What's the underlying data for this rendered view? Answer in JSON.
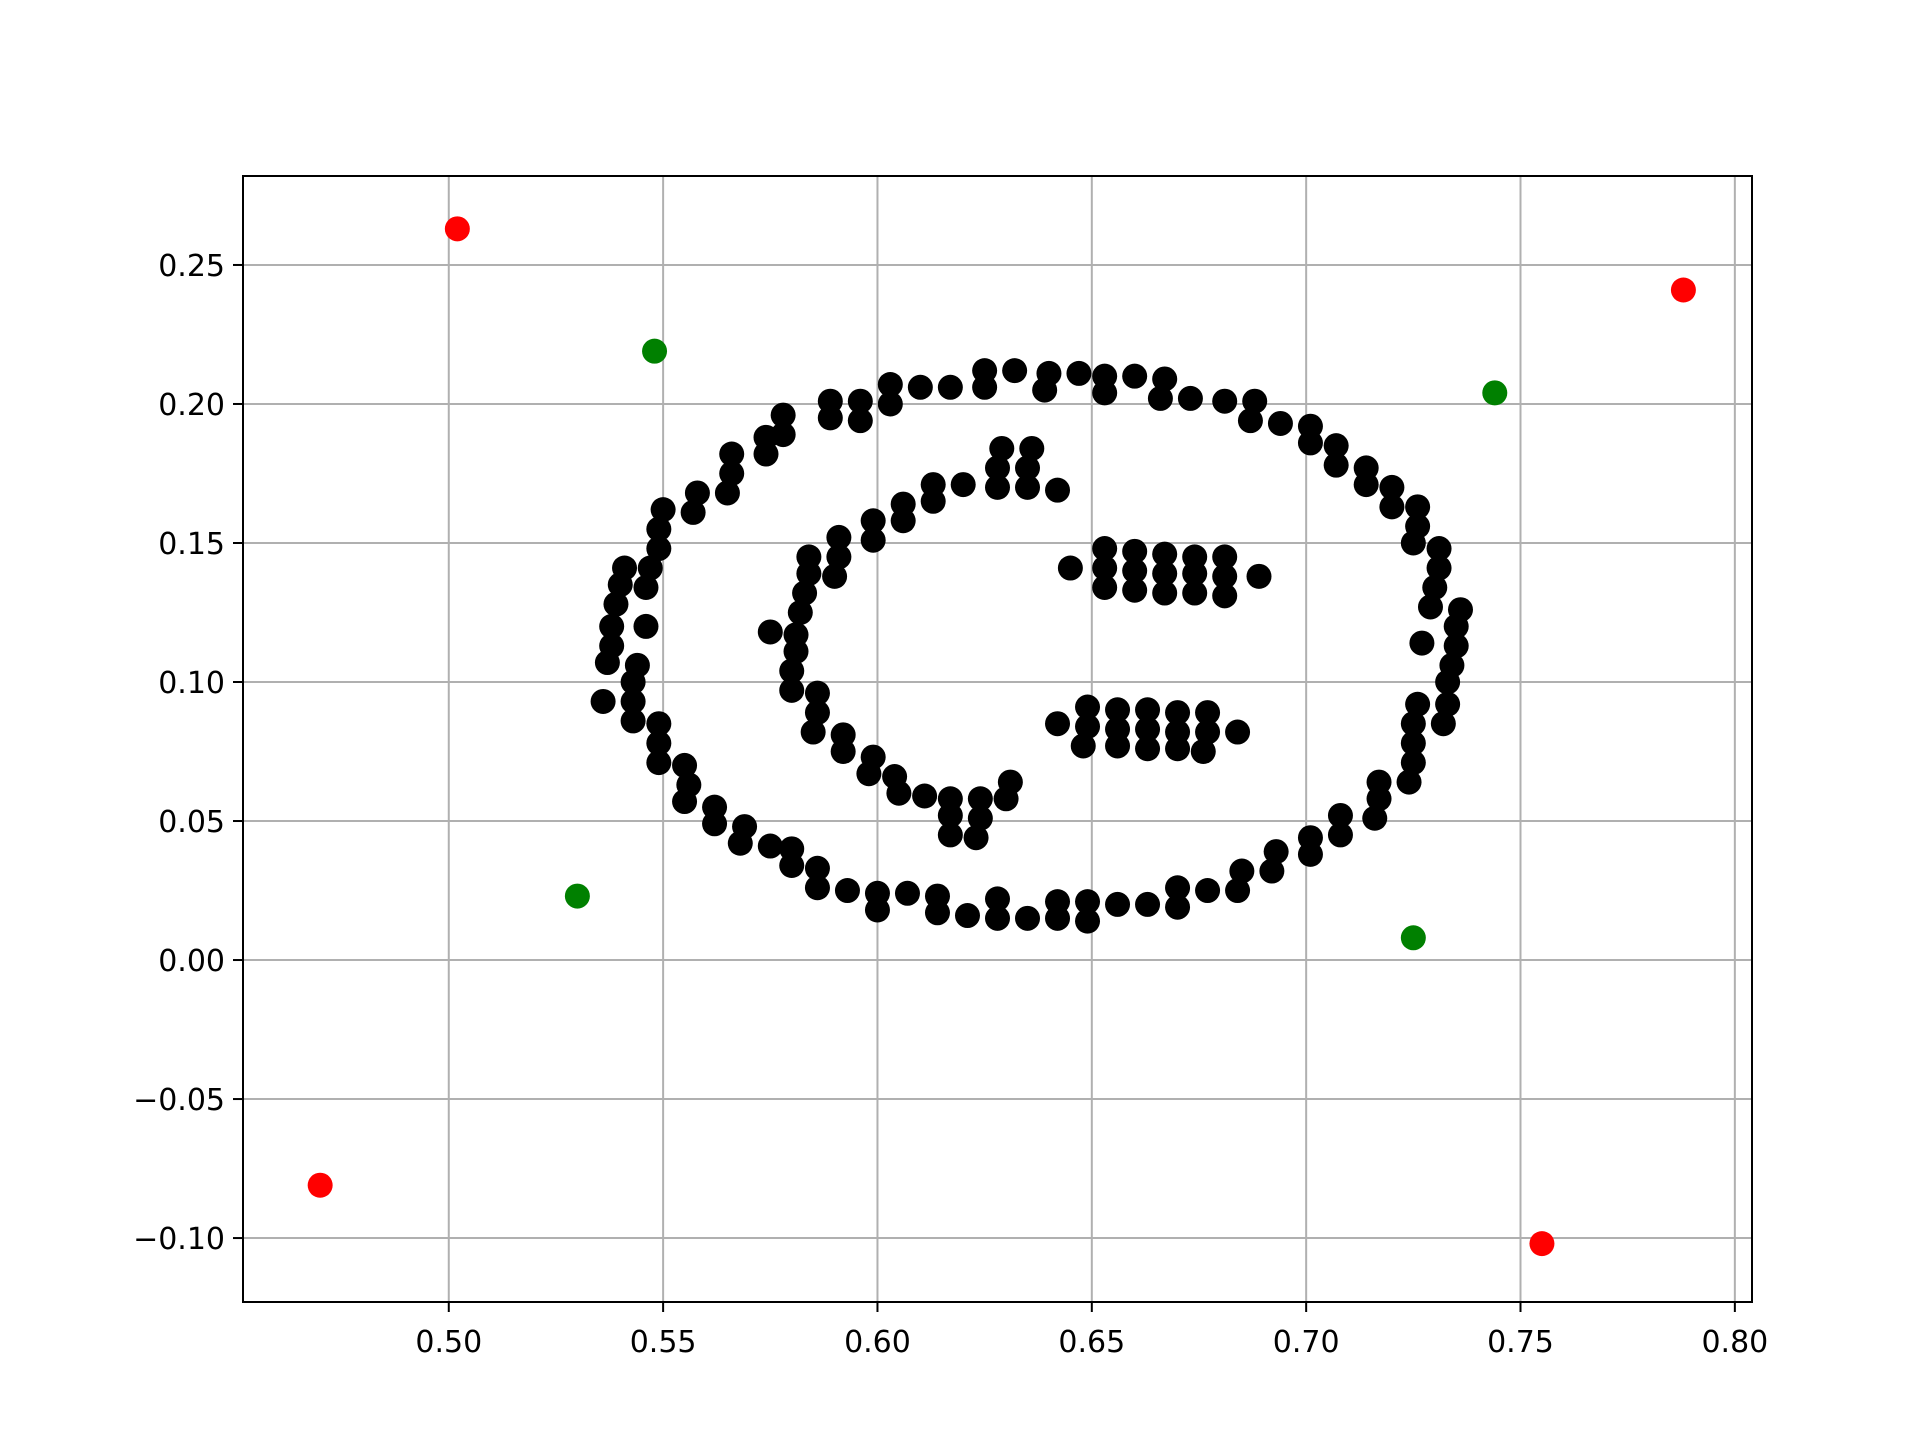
{
  "chart_data": {
    "type": "scatter",
    "title": "",
    "xlabel": "",
    "ylabel": "",
    "xlim": [
      0.452,
      0.804
    ],
    "ylim": [
      -0.123,
      0.282
    ],
    "grid": true,
    "xticks": [
      0.5,
      0.55,
      0.6,
      0.65,
      0.7,
      0.75,
      0.8
    ],
    "xtick_labels": [
      "0.50",
      "0.55",
      "0.60",
      "0.65",
      "0.70",
      "0.75",
      "0.80"
    ],
    "yticks": [
      -0.1,
      -0.05,
      0.0,
      0.05,
      0.1,
      0.15,
      0.2,
      0.25
    ],
    "ytick_labels": [
      "−0.10",
      "−0.05",
      "0.00",
      "0.05",
      "0.10",
      "0.15",
      "0.20",
      "0.25"
    ],
    "series": [
      {
        "color": "#000000",
        "points": [
          [
            0.625,
            0.212
          ],
          [
            0.632,
            0.212
          ],
          [
            0.64,
            0.211
          ],
          [
            0.647,
            0.211
          ],
          [
            0.653,
            0.21
          ],
          [
            0.66,
            0.21
          ],
          [
            0.667,
            0.209
          ],
          [
            0.603,
            0.207
          ],
          [
            0.61,
            0.206
          ],
          [
            0.617,
            0.206
          ],
          [
            0.625,
            0.206
          ],
          [
            0.639,
            0.205
          ],
          [
            0.653,
            0.204
          ],
          [
            0.666,
            0.202
          ],
          [
            0.673,
            0.202
          ],
          [
            0.681,
            0.201
          ],
          [
            0.688,
            0.201
          ],
          [
            0.589,
            0.201
          ],
          [
            0.596,
            0.201
          ],
          [
            0.603,
            0.2
          ],
          [
            0.578,
            0.196
          ],
          [
            0.589,
            0.195
          ],
          [
            0.596,
            0.194
          ],
          [
            0.687,
            0.194
          ],
          [
            0.694,
            0.193
          ],
          [
            0.701,
            0.192
          ],
          [
            0.578,
            0.189
          ],
          [
            0.574,
            0.188
          ],
          [
            0.701,
            0.186
          ],
          [
            0.707,
            0.185
          ],
          [
            0.574,
            0.182
          ],
          [
            0.566,
            0.182
          ],
          [
            0.707,
            0.178
          ],
          [
            0.714,
            0.177
          ],
          [
            0.566,
            0.175
          ],
          [
            0.714,
            0.171
          ],
          [
            0.72,
            0.17
          ],
          [
            0.558,
            0.168
          ],
          [
            0.565,
            0.168
          ],
          [
            0.72,
            0.163
          ],
          [
            0.726,
            0.163
          ],
          [
            0.55,
            0.162
          ],
          [
            0.557,
            0.161
          ],
          [
            0.549,
            0.155
          ],
          [
            0.549,
            0.148
          ],
          [
            0.725,
            0.15
          ],
          [
            0.726,
            0.156
          ],
          [
            0.731,
            0.148
          ],
          [
            0.541,
            0.141
          ],
          [
            0.547,
            0.141
          ],
          [
            0.731,
            0.141
          ],
          [
            0.54,
            0.135
          ],
          [
            0.546,
            0.134
          ],
          [
            0.73,
            0.134
          ],
          [
            0.539,
            0.128
          ],
          [
            0.729,
            0.127
          ],
          [
            0.736,
            0.126
          ],
          [
            0.538,
            0.12
          ],
          [
            0.546,
            0.12
          ],
          [
            0.735,
            0.12
          ],
          [
            0.538,
            0.113
          ],
          [
            0.735,
            0.113
          ],
          [
            0.727,
            0.114
          ],
          [
            0.537,
            0.107
          ],
          [
            0.544,
            0.106
          ],
          [
            0.734,
            0.106
          ],
          [
            0.543,
            0.1
          ],
          [
            0.733,
            0.1
          ],
          [
            0.536,
            0.093
          ],
          [
            0.543,
            0.093
          ],
          [
            0.726,
            0.092
          ],
          [
            0.733,
            0.092
          ],
          [
            0.543,
            0.086
          ],
          [
            0.549,
            0.085
          ],
          [
            0.725,
            0.085
          ],
          [
            0.732,
            0.085
          ],
          [
            0.549,
            0.078
          ],
          [
            0.725,
            0.078
          ],
          [
            0.549,
            0.071
          ],
          [
            0.555,
            0.07
          ],
          [
            0.725,
            0.071
          ],
          [
            0.556,
            0.063
          ],
          [
            0.717,
            0.064
          ],
          [
            0.724,
            0.064
          ],
          [
            0.555,
            0.057
          ],
          [
            0.717,
            0.058
          ],
          [
            0.562,
            0.055
          ],
          [
            0.562,
            0.049
          ],
          [
            0.569,
            0.048
          ],
          [
            0.716,
            0.051
          ],
          [
            0.708,
            0.052
          ],
          [
            0.568,
            0.042
          ],
          [
            0.575,
            0.041
          ],
          [
            0.58,
            0.04
          ],
          [
            0.708,
            0.045
          ],
          [
            0.701,
            0.044
          ],
          [
            0.701,
            0.038
          ],
          [
            0.693,
            0.039
          ],
          [
            0.58,
            0.034
          ],
          [
            0.586,
            0.033
          ],
          [
            0.692,
            0.032
          ],
          [
            0.685,
            0.032
          ],
          [
            0.586,
            0.026
          ],
          [
            0.593,
            0.025
          ],
          [
            0.677,
            0.025
          ],
          [
            0.684,
            0.025
          ],
          [
            0.67,
            0.026
          ],
          [
            0.6,
            0.024
          ],
          [
            0.607,
            0.024
          ],
          [
            0.614,
            0.023
          ],
          [
            0.628,
            0.022
          ],
          [
            0.642,
            0.021
          ],
          [
            0.649,
            0.021
          ],
          [
            0.656,
            0.02
          ],
          [
            0.663,
            0.02
          ],
          [
            0.67,
            0.019
          ],
          [
            0.6,
            0.018
          ],
          [
            0.614,
            0.017
          ],
          [
            0.621,
            0.016
          ],
          [
            0.628,
            0.015
          ],
          [
            0.635,
            0.015
          ],
          [
            0.642,
            0.015
          ],
          [
            0.649,
            0.014
          ],
          [
            0.629,
            0.184
          ],
          [
            0.636,
            0.184
          ],
          [
            0.628,
            0.177
          ],
          [
            0.635,
            0.177
          ],
          [
            0.613,
            0.171
          ],
          [
            0.62,
            0.171
          ],
          [
            0.628,
            0.17
          ],
          [
            0.635,
            0.17
          ],
          [
            0.642,
            0.169
          ],
          [
            0.613,
            0.165
          ],
          [
            0.606,
            0.164
          ],
          [
            0.599,
            0.158
          ],
          [
            0.606,
            0.158
          ],
          [
            0.591,
            0.152
          ],
          [
            0.599,
            0.151
          ],
          [
            0.584,
            0.145
          ],
          [
            0.591,
            0.145
          ],
          [
            0.584,
            0.139
          ],
          [
            0.59,
            0.138
          ],
          [
            0.583,
            0.132
          ],
          [
            0.582,
            0.125
          ],
          [
            0.575,
            0.118
          ],
          [
            0.581,
            0.117
          ],
          [
            0.581,
            0.111
          ],
          [
            0.58,
            0.104
          ],
          [
            0.58,
            0.097
          ],
          [
            0.586,
            0.096
          ],
          [
            0.586,
            0.089
          ],
          [
            0.585,
            0.082
          ],
          [
            0.592,
            0.081
          ],
          [
            0.592,
            0.075
          ],
          [
            0.599,
            0.073
          ],
          [
            0.598,
            0.067
          ],
          [
            0.604,
            0.066
          ],
          [
            0.605,
            0.06
          ],
          [
            0.611,
            0.059
          ],
          [
            0.617,
            0.058
          ],
          [
            0.624,
            0.058
          ],
          [
            0.617,
            0.052
          ],
          [
            0.624,
            0.051
          ],
          [
            0.617,
            0.045
          ],
          [
            0.623,
            0.044
          ],
          [
            0.631,
            0.064
          ],
          [
            0.63,
            0.058
          ],
          [
            0.645,
            0.141
          ],
          [
            0.653,
            0.148
          ],
          [
            0.66,
            0.147
          ],
          [
            0.667,
            0.146
          ],
          [
            0.674,
            0.145
          ],
          [
            0.681,
            0.145
          ],
          [
            0.653,
            0.141
          ],
          [
            0.66,
            0.14
          ],
          [
            0.667,
            0.139
          ],
          [
            0.674,
            0.139
          ],
          [
            0.681,
            0.138
          ],
          [
            0.689,
            0.138
          ],
          [
            0.653,
            0.134
          ],
          [
            0.66,
            0.133
          ],
          [
            0.667,
            0.132
          ],
          [
            0.674,
            0.132
          ],
          [
            0.681,
            0.131
          ],
          [
            0.642,
            0.085
          ],
          [
            0.649,
            0.091
          ],
          [
            0.656,
            0.09
          ],
          [
            0.663,
            0.09
          ],
          [
            0.67,
            0.089
          ],
          [
            0.677,
            0.089
          ],
          [
            0.649,
            0.084
          ],
          [
            0.656,
            0.083
          ],
          [
            0.663,
            0.083
          ],
          [
            0.67,
            0.082
          ],
          [
            0.677,
            0.082
          ],
          [
            0.684,
            0.082
          ],
          [
            0.648,
            0.077
          ],
          [
            0.656,
            0.077
          ],
          [
            0.663,
            0.076
          ],
          [
            0.67,
            0.076
          ],
          [
            0.676,
            0.075
          ]
        ]
      },
      {
        "color": "#008000",
        "points": [
          [
            0.548,
            0.219
          ],
          [
            0.744,
            0.204
          ],
          [
            0.53,
            0.023
          ],
          [
            0.725,
            0.008
          ]
        ]
      },
      {
        "color": "#ff0000",
        "points": [
          [
            0.502,
            0.263
          ],
          [
            0.788,
            0.241
          ],
          [
            0.47,
            -0.081
          ],
          [
            0.755,
            -0.102
          ]
        ]
      }
    ]
  }
}
